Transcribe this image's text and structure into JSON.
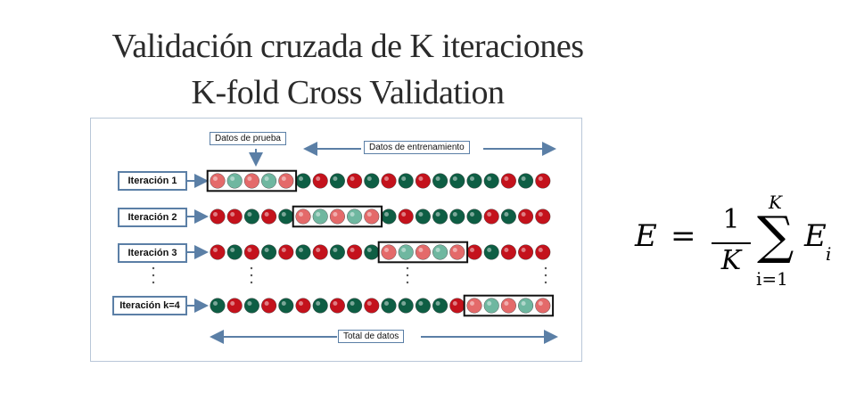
{
  "title": {
    "line1": "Validación cruzada de K iteraciones",
    "line2": "K-fold Cross Validation"
  },
  "diagram": {
    "test_label": "Datos de prueba",
    "train_label": "Datos de entrenamiento",
    "total_label": "Total de datos",
    "balls_per_row": 20,
    "colors": {
      "train_dark": "#0e5e44",
      "train_red": "#c4121c",
      "test_red": "#e46a6a",
      "test_teal": "#6fb7a0",
      "label_border": "#5b7fa6",
      "arrow": "#5b7fa6"
    },
    "row_pattern": [
      "R",
      "R",
      "R",
      "G",
      "R",
      "G",
      "R",
      "G",
      "R",
      "G",
      "R",
      "G",
      "R",
      "G",
      "G",
      "G",
      "G",
      "R",
      "G",
      "R"
    ],
    "iterations": [
      {
        "label": "Iteración 1",
        "test_start": 0,
        "test_count": 5
      },
      {
        "label": "Iteración 2",
        "test_start": 5,
        "test_count": 5
      },
      {
        "label": "Iteración 3",
        "test_start": 10,
        "test_count": 5
      },
      {
        "label": "Iteración k=4",
        "test_start": 15,
        "test_count": 5
      }
    ]
  },
  "formula": {
    "lhs": "E",
    "equals": "=",
    "numerator": "1",
    "denominator": "K",
    "sum_symbol": "∑",
    "upper": "K",
    "lower": "i=1",
    "term": "E",
    "term_sub": "i"
  }
}
